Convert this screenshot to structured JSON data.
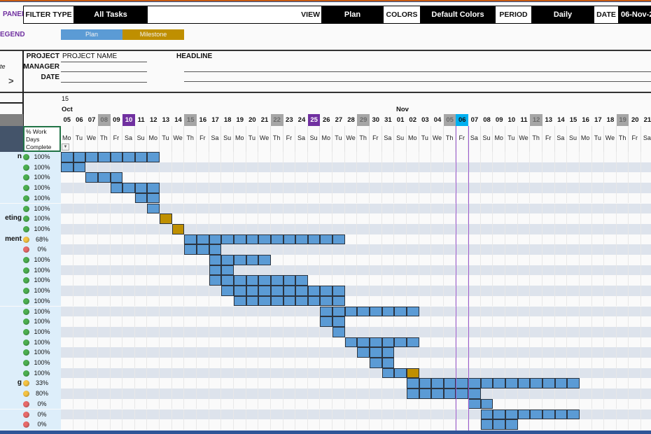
{
  "panel": {
    "title": "PANEL",
    "filter_label": "FILTER TYPE",
    "filter_value": "All Tasks",
    "view_label": "VIEW",
    "view_value": "Plan",
    "colors_label": "COLORS",
    "colors_value": "Default Colors",
    "period_label": "PERIOD",
    "period_value": "Daily",
    "date_label": "DATE",
    "date_value": "06-Nov-2"
  },
  "legend": {
    "title": "EGEND",
    "plan": "Plan",
    "milestone": "Milestone",
    "plan_color": "#5b9bd5",
    "milestone_color": "#bf8f00"
  },
  "project": {
    "project_label": "PROJECT",
    "project_value": "PROJECT NAME",
    "manager_label": "MANAGER",
    "date_label": "DATE",
    "headline_label": "HEADLINE",
    "left_partial": "te",
    "nav_arrow": ">"
  },
  "timeline": {
    "week_number": "15",
    "month_oct": "Oct",
    "month_nov": "Nov",
    "dates": [
      "05",
      "06",
      "07",
      "08",
      "09",
      "10",
      "11",
      "12",
      "13",
      "14",
      "15",
      "16",
      "17",
      "18",
      "19",
      "20",
      "21",
      "22",
      "23",
      "24",
      "25",
      "26",
      "27",
      "28",
      "29",
      "30",
      "31",
      "01",
      "02",
      "03",
      "04",
      "05",
      "06",
      "07",
      "08",
      "09",
      "10",
      "11",
      "12",
      "13",
      "14",
      "15",
      "16",
      "17",
      "18",
      "19",
      "20",
      "21"
    ],
    "weekdays": [
      "Mo",
      "Tu",
      "We",
      "Th",
      "Fr",
      "Sa",
      "Su",
      "Mo",
      "Tu",
      "We",
      "Th",
      "Fr",
      "Sa",
      "Su",
      "Mo",
      "Tu",
      "We",
      "Th",
      "Fr",
      "Sa",
      "Su",
      "Mo",
      "Tu",
      "We",
      "Th",
      "Fr",
      "Sa",
      "Su",
      "Mo",
      "Tu",
      "We",
      "Th",
      "Fr",
      "Sa",
      "Su",
      "Mo",
      "Tu",
      "We",
      "Th",
      "Fr",
      "Sa",
      "Su",
      "Mo",
      "Tu",
      "We",
      "Th",
      "Fr",
      "Sa"
    ],
    "gray_dates": [
      3,
      10,
      17,
      24,
      31,
      38,
      45
    ],
    "purple_dates": [
      5,
      20
    ],
    "today_index": 32
  },
  "column_header": {
    "line1": "% Work",
    "line2": "Days",
    "line3": "Complete"
  },
  "tasks": [
    {
      "name": "n",
      "pct": "100%",
      "status": "green",
      "bars": [
        0,
        7
      ]
    },
    {
      "name": "",
      "pct": "100%",
      "status": "green",
      "bars": [
        0,
        1
      ]
    },
    {
      "name": "",
      "pct": "100%",
      "status": "green",
      "bars": [
        2,
        4
      ]
    },
    {
      "name": "",
      "pct": "100%",
      "status": "green",
      "bars": [
        4,
        7
      ]
    },
    {
      "name": "",
      "pct": "100%",
      "status": "green",
      "bars": [
        6,
        7
      ]
    },
    {
      "name": "",
      "pct": "100%",
      "status": "green",
      "bars": [
        7,
        7
      ]
    },
    {
      "name": "eting",
      "pct": "100%",
      "status": "green",
      "milestone": 8
    },
    {
      "name": "",
      "pct": "100%",
      "status": "green",
      "milestone": 9
    },
    {
      "name": "ment",
      "pct": "68%",
      "status": "yellow",
      "bars": [
        10,
        22
      ]
    },
    {
      "name": "",
      "pct": "0%",
      "status": "red",
      "bars": [
        10,
        12
      ]
    },
    {
      "name": "",
      "pct": "100%",
      "status": "green",
      "bars": [
        12,
        16
      ]
    },
    {
      "name": "",
      "pct": "100%",
      "status": "green",
      "bars": [
        12,
        13
      ]
    },
    {
      "name": "",
      "pct": "100%",
      "status": "green",
      "bars": [
        12,
        19
      ]
    },
    {
      "name": "",
      "pct": "100%",
      "status": "green",
      "bars": [
        13,
        22
      ]
    },
    {
      "name": "",
      "pct": "100%",
      "status": "green",
      "bars": [
        14,
        22
      ]
    },
    {
      "name": "",
      "pct": "100%",
      "status": "green",
      "bars": [
        21,
        28
      ]
    },
    {
      "name": "",
      "pct": "100%",
      "status": "green",
      "bars": [
        21,
        22
      ]
    },
    {
      "name": "",
      "pct": "100%",
      "status": "green",
      "bars": [
        22,
        22
      ]
    },
    {
      "name": "",
      "pct": "100%",
      "status": "green",
      "bars": [
        23,
        28
      ]
    },
    {
      "name": "",
      "pct": "100%",
      "status": "green",
      "bars": [
        24,
        26
      ]
    },
    {
      "name": "",
      "pct": "100%",
      "status": "green",
      "bars": [
        25,
        26
      ]
    },
    {
      "name": "",
      "pct": "100%",
      "status": "green",
      "bars": [
        26,
        27
      ],
      "milestone": 28
    },
    {
      "name": "g",
      "pct": "33%",
      "status": "yellow",
      "bars": [
        28,
        41
      ]
    },
    {
      "name": "",
      "pct": "80%",
      "status": "yellow",
      "bars": [
        28,
        33
      ]
    },
    {
      "name": "",
      "pct": "0%",
      "status": "red",
      "bars": [
        33,
        34
      ]
    },
    {
      "name": "",
      "pct": "0%",
      "status": "red",
      "bars": [
        34,
        41
      ]
    },
    {
      "name": "",
      "pct": "0%",
      "status": "red",
      "bars": [
        34,
        36
      ]
    }
  ],
  "status_colors": {
    "green": "#4caf50",
    "yellow": "#f5c342",
    "red": "#e86a6a"
  }
}
